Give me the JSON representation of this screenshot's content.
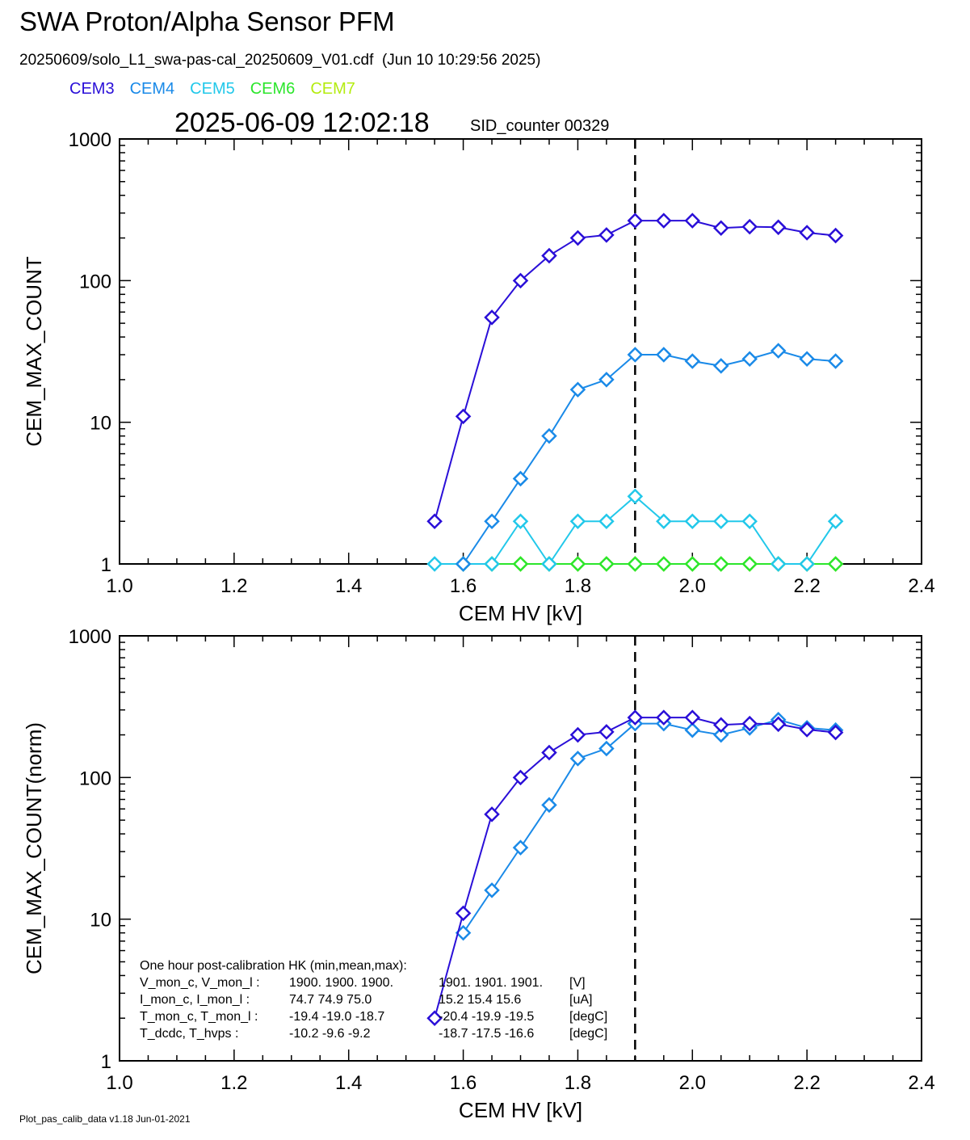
{
  "header": {
    "title": "SWA Proton/Alpha Sensor PFM",
    "subtitle": "20250609/solo_L1_swa-pas-cal_20250609_V01.cdf  (Jun 10 10:29:56 2025)",
    "timestamp": "2025-06-09 12:02:18",
    "sid_counter": "SID_counter 00329"
  },
  "legend": [
    {
      "name": "CEM3",
      "color": "#2a0fd8"
    },
    {
      "name": "CEM4",
      "color": "#1a8ae8"
    },
    {
      "name": "CEM5",
      "color": "#22c8ea"
    },
    {
      "name": "CEM6",
      "color": "#2ce62c"
    },
    {
      "name": "CEM7",
      "color": "#b4ec10"
    }
  ],
  "footer": "Plot_pas_calib_data v1.18 Jun-01-2021",
  "colors": {
    "CEM3": "#2a0fd8",
    "CEM4": "#1a8ae8",
    "CEM5": "#22c8ea",
    "CEM6": "#2ce62c",
    "CEM7": "#b4ec10",
    "reference_line": "#000000"
  },
  "chart_data": [
    {
      "type": "line",
      "xlabel": "CEM HV [kV]",
      "ylabel": "CEM_MAX_COUNT",
      "xlim": [
        1.0,
        2.4
      ],
      "ylim": [
        1,
        1000
      ],
      "yscale": "log",
      "xticks": [
        "1.0",
        "1.2",
        "1.4",
        "1.6",
        "1.8",
        "2.0",
        "2.2",
        "2.4"
      ],
      "yticks": [
        "1",
        "10",
        "100",
        "1000"
      ],
      "reference_line_x": 1.9,
      "x": [
        1.55,
        1.6,
        1.65,
        1.7,
        1.75,
        1.8,
        1.85,
        1.9,
        1.95,
        2.0,
        2.05,
        2.1,
        2.15,
        2.2,
        2.25
      ],
      "series": [
        {
          "name": "CEM3",
          "values": [
            2,
            11,
            55,
            100,
            150,
            200,
            210,
            265,
            265,
            265,
            235,
            240,
            238,
            218,
            208
          ]
        },
        {
          "name": "CEM4",
          "values": [
            null,
            1,
            2,
            4,
            8,
            17,
            20,
            30,
            30,
            27,
            25,
            28,
            32,
            28,
            27
          ]
        },
        {
          "name": "CEM5",
          "values": [
            1,
            1,
            1,
            2,
            1,
            2,
            2,
            3,
            2,
            2,
            2,
            2,
            1,
            1,
            2
          ]
        },
        {
          "name": "CEM6",
          "values": [
            null,
            1,
            1,
            1,
            1,
            1,
            1,
            1,
            1,
            1,
            1,
            1,
            1,
            1,
            1
          ]
        },
        {
          "name": "CEM7",
          "values": [
            null,
            1,
            1,
            1,
            1,
            1,
            1,
            1,
            1,
            1,
            1,
            1,
            1,
            1,
            1
          ]
        }
      ]
    },
    {
      "type": "line",
      "xlabel": "CEM HV [kV]",
      "ylabel": "CEM_MAX_COUNT(norm)",
      "xlim": [
        1.0,
        2.4
      ],
      "ylim": [
        1,
        1000
      ],
      "yscale": "log",
      "xticks": [
        "1.0",
        "1.2",
        "1.4",
        "1.6",
        "1.8",
        "2.0",
        "2.2",
        "2.4"
      ],
      "yticks": [
        "1",
        "10",
        "100",
        "1000"
      ],
      "reference_line_x": 1.9,
      "x": [
        1.55,
        1.6,
        1.65,
        1.7,
        1.75,
        1.8,
        1.85,
        1.9,
        1.95,
        2.0,
        2.05,
        2.1,
        2.15,
        2.2,
        2.25
      ],
      "series": [
        {
          "name": "CEM3",
          "values": [
            2,
            11,
            55,
            100,
            150,
            200,
            210,
            265,
            265,
            265,
            235,
            240,
            238,
            218,
            208
          ]
        },
        {
          "name": "CEM4",
          "values": [
            null,
            8,
            16,
            32,
            64,
            136,
            160,
            240,
            240,
            216,
            200,
            224,
            256,
            224,
            216
          ]
        }
      ],
      "annotation": {
        "heading": "One hour post-calibration HK (min,mean,max):",
        "rows": [
          {
            "label": "V_mon_c, V_mon_l :",
            "values_c": "1900.  1900.  1900.",
            "values_l": "1901.  1901.  1901.",
            "unit": "[V]"
          },
          {
            "label": "I_mon_c,  I_mon_l :",
            "values_c": "74.7   74.9   75.0",
            "values_l": "15.2   15.4   15.6",
            "unit": "[uA]"
          },
          {
            "label": "T_mon_c, T_mon_l :",
            "values_c": "-19.4  -19.0  -18.7",
            "values_l": "-20.4  -19.9  -19.5",
            "unit": "[degC]"
          },
          {
            "label": "T_dcdc,    T_hvps :",
            "values_c": "-10.2   -9.6   -9.2",
            "values_l": "-18.7  -17.5  -16.6",
            "unit": "[degC]"
          }
        ]
      }
    }
  ]
}
